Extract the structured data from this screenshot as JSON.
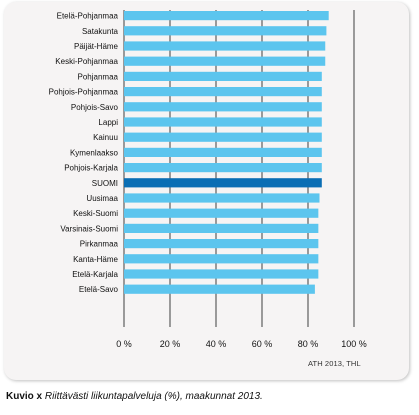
{
  "chart_data": {
    "type": "bar",
    "orientation": "horizontal",
    "categories": [
      "Etelä-Pohjanmaa",
      "Satakunta",
      "Päijät-Häme",
      "Keski-Pohjanmaa",
      "Pohjanmaa",
      "Pohjois-Pohjanmaa",
      "Pohjois-Savo",
      "Lappi",
      "Kainuu",
      "Kymenlaakso",
      "Pohjois-Karjala",
      "SUOMI",
      "Uusimaa",
      "Keski-Suomi",
      "Varsinais-Suomi",
      "Pirkanmaa",
      "Kanta-Häme",
      "Etelä-Karjala",
      "Etelä-Savo"
    ],
    "values": [
      89,
      88,
      87.5,
      87.5,
      86,
      86,
      86,
      86,
      86,
      86,
      86,
      86,
      85,
      84.5,
      84.5,
      84.5,
      84.5,
      84.5,
      83
    ],
    "highlight": "SUOMI",
    "xlim": [
      0,
      100
    ],
    "xticks": [
      "0 %",
      "20 %",
      "40 %",
      "60 %",
      "80 %",
      "100 %"
    ],
    "xtick_values": [
      0,
      20,
      40,
      60,
      80,
      100
    ],
    "grid": true,
    "title": "",
    "xlabel": "",
    "ylabel": "",
    "colors": {
      "bar": "#5cc5ee",
      "bar_highlight": "#0a6eb4",
      "grid": "#111111",
      "panel": "#f6f4f4"
    },
    "source": "ATH 2013, THL"
  },
  "caption": {
    "label": "Kuvio x",
    "italic": "Riittävästi liikuntapalveluja (%), maakunnat 2013."
  }
}
